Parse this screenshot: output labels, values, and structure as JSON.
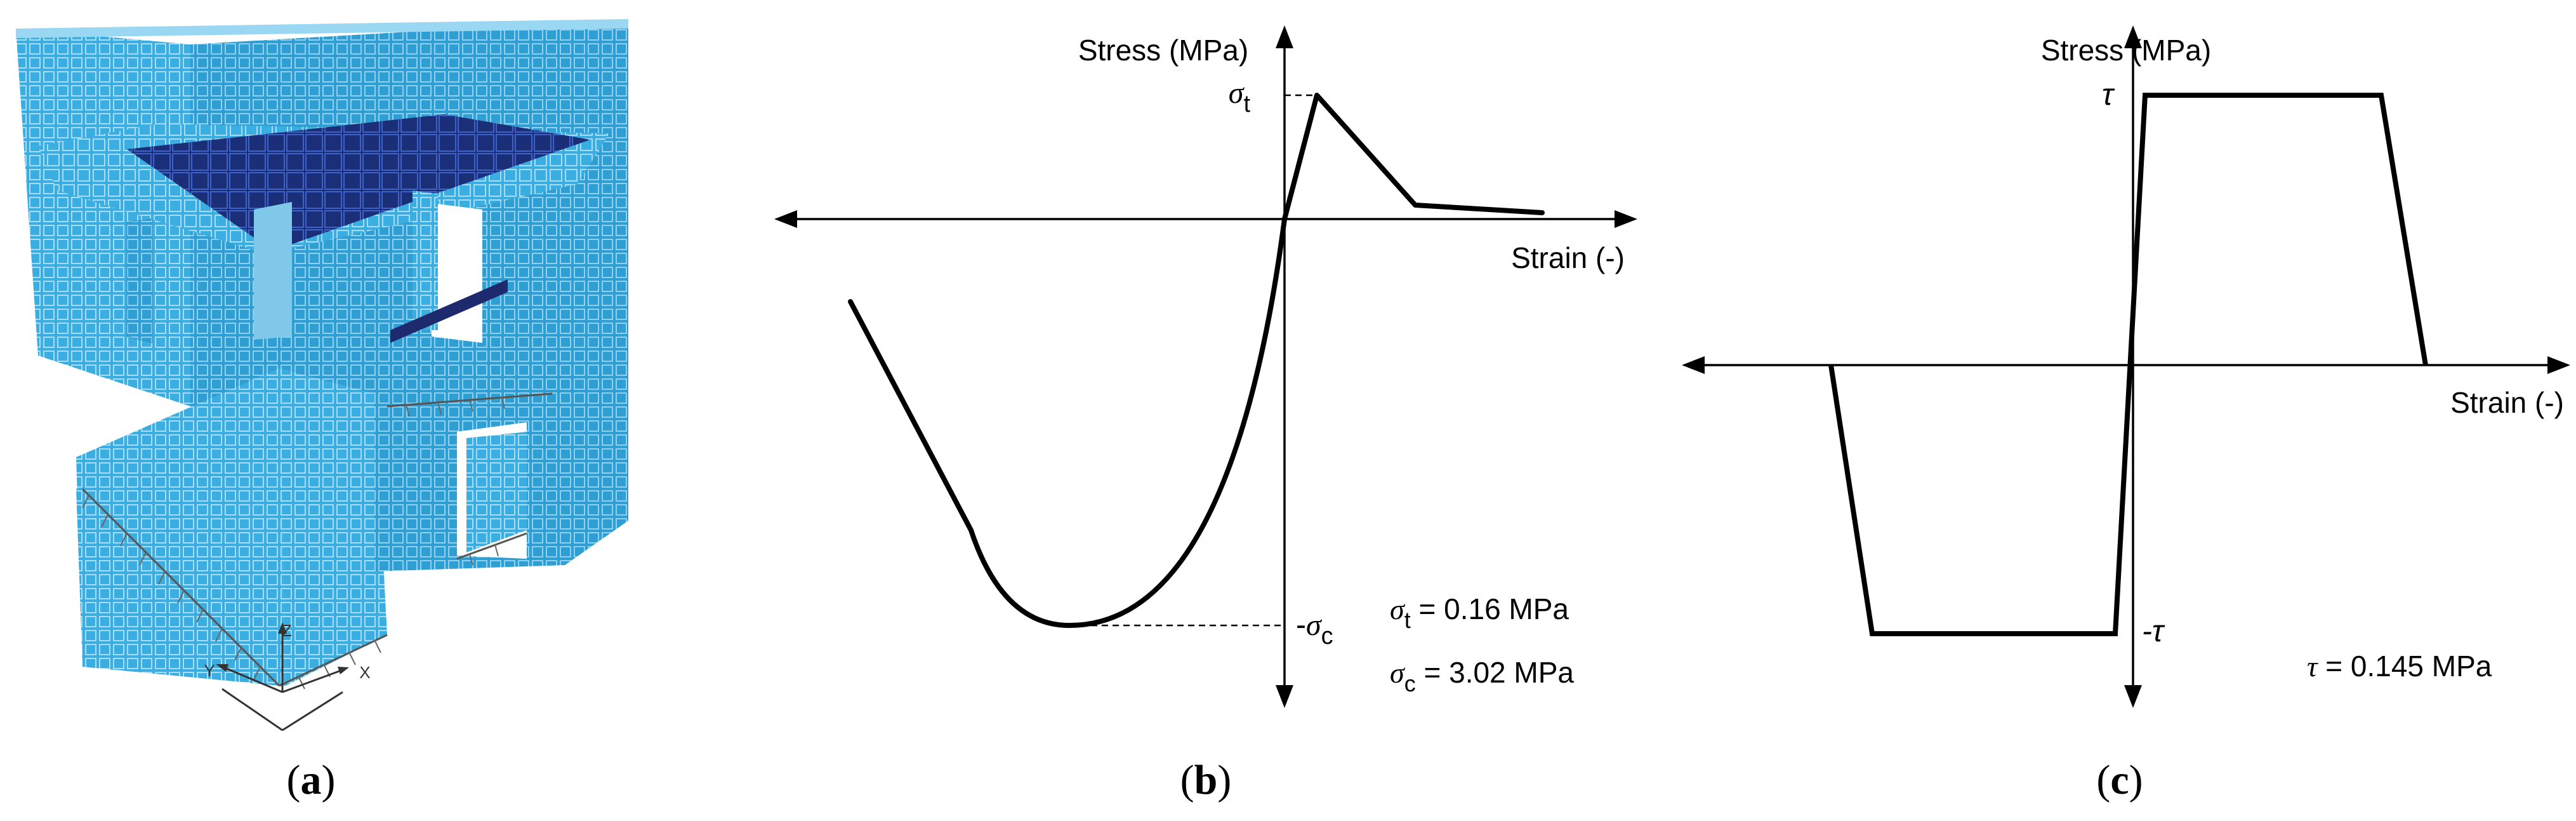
{
  "panel_a": {
    "caption_open": "(",
    "caption_letter": "a",
    "caption_close": ")",
    "axis_labels": {
      "z": "Z",
      "y": "Y",
      "x": "X"
    },
    "colors": {
      "wall": "#3aaee0",
      "wall_dark": "#2b95c8",
      "mesh": "#9ad7f2",
      "slab": "#1b2f78",
      "slab_mesh": "#3b5cc0",
      "lintel": "#1d2a6e",
      "supports": "#555555"
    }
  },
  "panel_b": {
    "caption_open": "(",
    "caption_letter": "b",
    "caption_close": ")",
    "y_axis_label": "Stress (MPa)",
    "x_axis_label": "Strain (-)",
    "tick_top": {
      "sym": "σ",
      "sub": "t"
    },
    "tick_bottom": {
      "prefix": "-",
      "sym": "σ",
      "sub": "c"
    },
    "note_1": {
      "sym": "σ",
      "sub": "t",
      "text": " = 0.16 MPa"
    },
    "note_2": {
      "sym": "σ",
      "sub": "c",
      "text": " = 3.02 MPa"
    }
  },
  "panel_c": {
    "caption_open": "(",
    "caption_letter": "c",
    "caption_close": ")",
    "y_axis_label": "Stress (MPa)",
    "x_axis_label": "Strain (-)",
    "tick_top": "τ",
    "tick_bottom": "-τ",
    "note": {
      "sym": "τ",
      "text": " = 0.145 MPa"
    }
  }
}
